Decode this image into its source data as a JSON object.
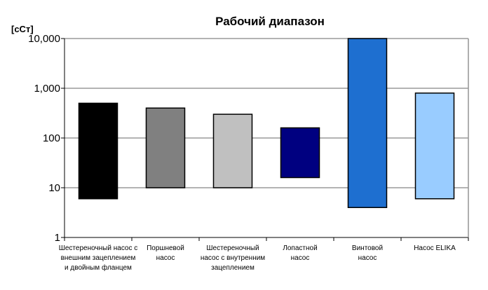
{
  "chart_data": {
    "type": "bar",
    "subtype": "floating-range",
    "title": "Рабочий диапазон",
    "ylabel": "[сСт]",
    "yscale": "log",
    "ylim": [
      1,
      10000
    ],
    "yticks": [
      1,
      10,
      100,
      1000,
      10000
    ],
    "ytick_labels": [
      "1",
      "10",
      "100",
      "1,000",
      "10,000"
    ],
    "grid": {
      "y": true,
      "x": false
    },
    "legend": "none",
    "categories": [
      [
        "Шестереночный насос с",
        "внешним зацеплением",
        "и двойным фланцем"
      ],
      [
        "Поршневой",
        "насос"
      ],
      [
        "Шестереночный",
        "насос с внутренним",
        "зацеплением"
      ],
      [
        "Лопастной",
        "насос"
      ],
      [
        "Винтовой",
        "насос"
      ],
      [
        "Насос ELIKA"
      ]
    ],
    "ranges": [
      {
        "low": 6,
        "high": 500
      },
      {
        "low": 10,
        "high": 400
      },
      {
        "low": 10,
        "high": 300
      },
      {
        "low": 16,
        "high": 160
      },
      {
        "low": 4,
        "high": 10000
      },
      {
        "low": 6,
        "high": 800
      }
    ],
    "colors": [
      "#000000",
      "#808080",
      "#c0c0c0",
      "#000080",
      "#1e6fd0",
      "#99ccff"
    ]
  }
}
